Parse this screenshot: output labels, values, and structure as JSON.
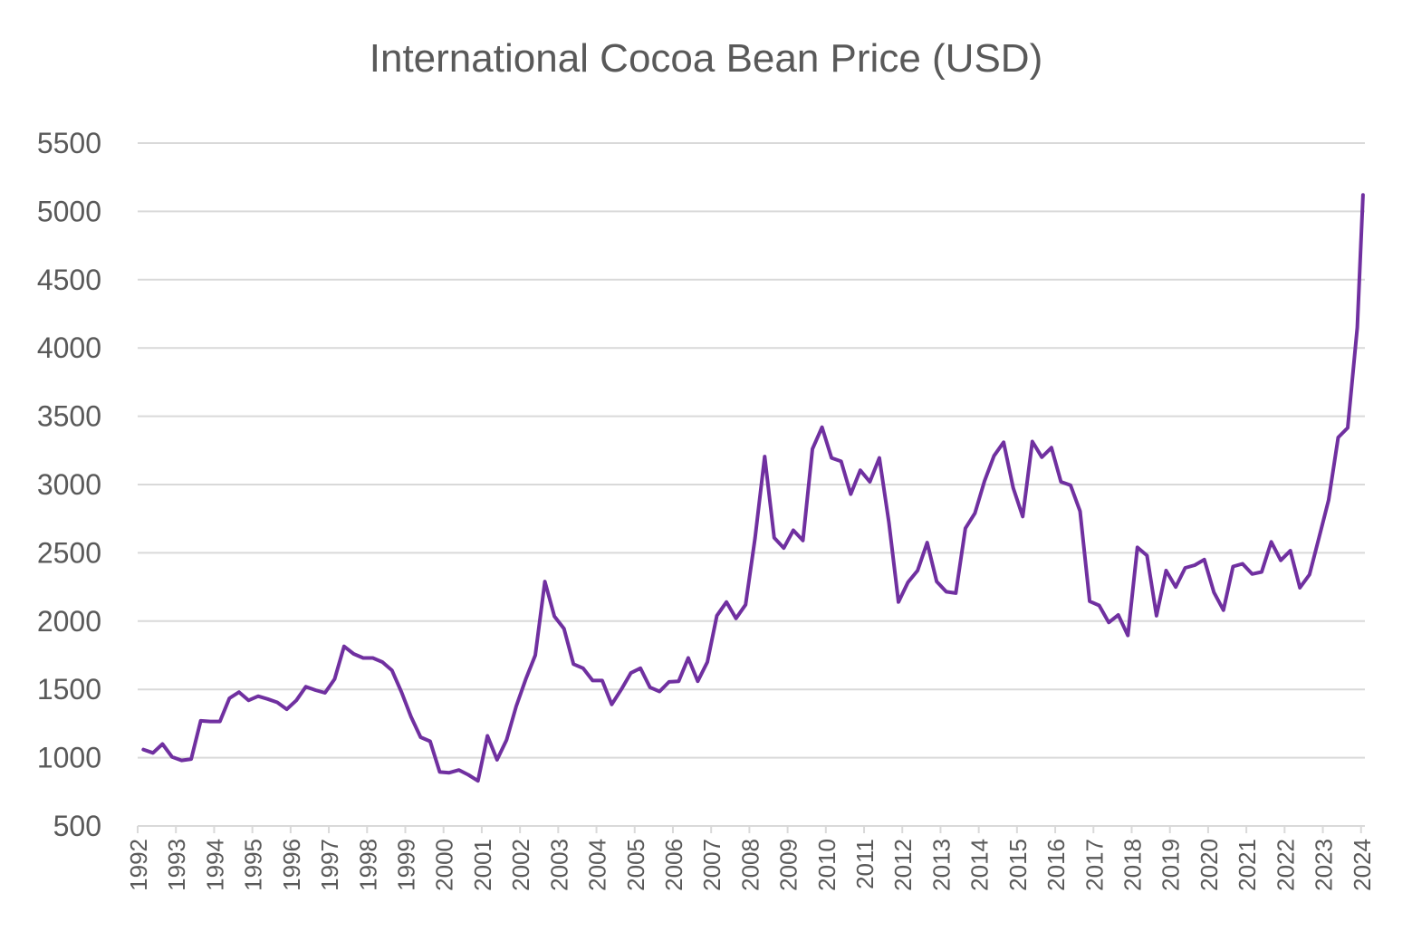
{
  "chart_data": {
    "type": "line",
    "title": "International Cocoa Bean Price (USD)",
    "xlabel": "",
    "ylabel": "",
    "ylim": [
      500,
      5500
    ],
    "yticks": [
      500,
      1000,
      1500,
      2000,
      2500,
      3000,
      3500,
      4000,
      4500,
      5000,
      5500
    ],
    "xlim": [
      1992,
      2024.1
    ],
    "xticks": [
      "1992",
      "1993",
      "1994",
      "1995",
      "1996",
      "1997",
      "1998",
      "1999",
      "2000",
      "2001",
      "2002",
      "2003",
      "2004",
      "2005",
      "2006",
      "2007",
      "2008",
      "2009",
      "2010",
      "2011",
      "2012",
      "2013",
      "2014",
      "2015",
      "2016",
      "2017",
      "2018",
      "2019",
      "2020",
      "2021",
      "2022",
      "2023",
      "2024"
    ],
    "grid": true,
    "legend": "none",
    "colors": {
      "line": "#7030A0",
      "grid": "#D9D9D9",
      "text": "#595959"
    },
    "series": [
      {
        "x": [
          1992.15,
          1992.4,
          1992.65,
          1992.9,
          1993.15,
          1993.4,
          1993.65,
          1993.9,
          1994.15,
          1994.4,
          1994.65,
          1994.9,
          1995.15,
          1995.4,
          1995.65,
          1995.9,
          1996.15,
          1996.4,
          1996.65,
          1996.9,
          1997.15,
          1997.4,
          1997.65,
          1997.9,
          1998.15,
          1998.4,
          1998.65,
          1998.9,
          1999.15,
          1999.4,
          1999.65,
          1999.9,
          2000.15,
          2000.4,
          2000.65,
          2000.9,
          2001.15,
          2001.4,
          2001.65,
          2001.9,
          2002.15,
          2002.4,
          2002.65,
          2002.9,
          2003.15,
          2003.4,
          2003.65,
          2003.9,
          2004.15,
          2004.4,
          2004.65,
          2004.9,
          2005.15,
          2005.4,
          2005.65,
          2005.9,
          2006.15,
          2006.4,
          2006.65,
          2006.9,
          2007.15,
          2007.4,
          2007.65,
          2007.9,
          2008.15,
          2008.4,
          2008.65,
          2008.9,
          2009.15,
          2009.4,
          2009.65,
          2009.9,
          2010.15,
          2010.4,
          2010.65,
          2010.9,
          2011.15,
          2011.4,
          2011.65,
          2011.9,
          2012.15,
          2012.4,
          2012.65,
          2012.9,
          2013.15,
          2013.4,
          2013.65,
          2013.9,
          2014.15,
          2014.4,
          2014.65,
          2014.9,
          2015.15,
          2015.4,
          2015.65,
          2015.9,
          2016.15,
          2016.4,
          2016.65,
          2016.9,
          2017.15,
          2017.4,
          2017.65,
          2017.9,
          2018.15,
          2018.4,
          2018.65,
          2018.9,
          2019.15,
          2019.4,
          2019.65,
          2019.9,
          2020.15,
          2020.4,
          2020.65,
          2020.9,
          2021.15,
          2021.4,
          2021.65,
          2021.9,
          2022.15,
          2022.4,
          2022.65,
          2022.9,
          2023.15,
          2023.4,
          2023.65,
          2023.9,
          2024.05
        ],
        "y": [
          1060,
          1035,
          1100,
          1005,
          980,
          990,
          1270,
          1265,
          1265,
          1435,
          1480,
          1420,
          1450,
          1430,
          1405,
          1355,
          1420,
          1520,
          1495,
          1475,
          1575,
          1815,
          1760,
          1730,
          1730,
          1700,
          1640,
          1480,
          1300,
          1150,
          1120,
          895,
          890,
          910,
          875,
          830,
          1160,
          985,
          1130,
          1375,
          1575,
          1750,
          2290,
          2035,
          1945,
          1685,
          1655,
          1565,
          1565,
          1390,
          1500,
          1620,
          1655,
          1515,
          1485,
          1555,
          1560,
          1730,
          1560,
          1700,
          2040,
          2140,
          2020,
          2120,
          2610,
          3205,
          2610,
          2535,
          2665,
          2590,
          3260,
          3420,
          3195,
          3170,
          2930,
          3105,
          3020,
          3195,
          2720,
          2140,
          2285,
          2370,
          2575,
          2290,
          2215,
          2205,
          2680,
          2790,
          3025,
          3210,
          3310,
          2975,
          2765,
          3315,
          3200,
          3270,
          3020,
          2995,
          2805,
          2145,
          2115,
          1990,
          2045,
          1895,
          2540,
          2480,
          2040,
          2370,
          2250,
          2390,
          2410,
          2450,
          2210,
          2080,
          2400,
          2420,
          2345,
          2360,
          2580,
          2445,
          2515,
          2245,
          2340,
          2610,
          2885,
          3345,
          3415,
          4150,
          5120
        ]
      }
    ]
  }
}
